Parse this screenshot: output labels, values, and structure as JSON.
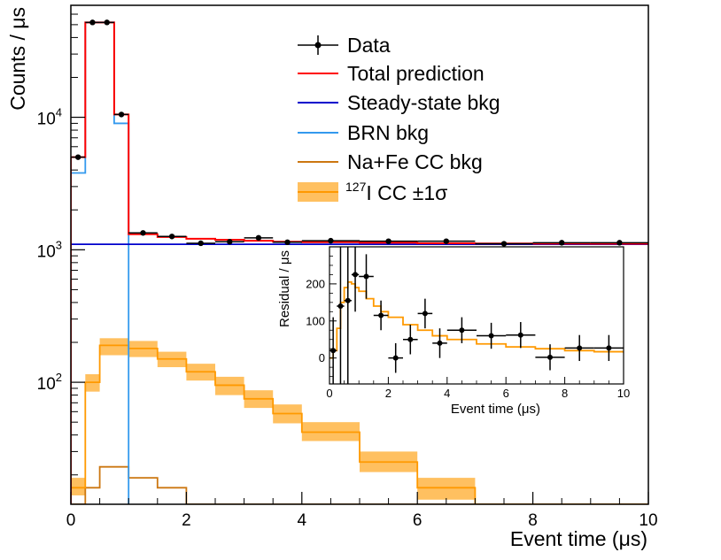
{
  "chart_data": {
    "type": "histogram",
    "main": {
      "xlabel": "Event time (μs)",
      "ylabel": "Counts / μs",
      "xlim": [
        0,
        10
      ],
      "ylim": [
        12,
        70000
      ],
      "yscale": "log",
      "x_ticks": [
        0,
        2,
        4,
        6,
        8,
        10
      ],
      "x_tick_labels": [
        "0",
        "2",
        "4",
        "6",
        "8",
        "10"
      ],
      "y_ticks": [
        {
          "value": 100,
          "base": "10",
          "exp": "2"
        },
        {
          "value": 1000,
          "base": "10",
          "exp": "3"
        },
        {
          "value": 10000,
          "base": "10",
          "exp": "4"
        }
      ],
      "data_points": [
        {
          "x": 0.125,
          "y": 5000,
          "xerr": 0.125
        },
        {
          "x": 0.375,
          "y": 52000,
          "xerr": 0.125
        },
        {
          "x": 0.625,
          "y": 52000,
          "xerr": 0.125
        },
        {
          "x": 0.875,
          "y": 10500,
          "xerr": 0.125
        },
        {
          "x": 1.25,
          "y": 1340,
          "xerr": 0.25
        },
        {
          "x": 1.75,
          "y": 1260,
          "xerr": 0.25
        },
        {
          "x": 2.25,
          "y": 1120,
          "xerr": 0.25
        },
        {
          "x": 2.75,
          "y": 1150,
          "xerr": 0.25
        },
        {
          "x": 3.25,
          "y": 1230,
          "xerr": 0.25
        },
        {
          "x": 3.75,
          "y": 1140,
          "xerr": 0.25
        },
        {
          "x": 4.5,
          "y": 1170,
          "xerr": 0.5
        },
        {
          "x": 5.5,
          "y": 1160,
          "xerr": 0.5
        },
        {
          "x": 6.5,
          "y": 1160,
          "xerr": 0.5
        },
        {
          "x": 7.5,
          "y": 1110,
          "xerr": 0.5
        },
        {
          "x": 8.5,
          "y": 1130,
          "xerr": 0.5
        },
        {
          "x": 9.5,
          "y": 1130,
          "xerr": 0.5
        }
      ],
      "series": [
        {
          "name": "Total prediction",
          "color": "#ff0000",
          "edges": [
            0,
            0.25,
            0.5,
            0.75,
            1,
            1.5,
            2,
            2.5,
            3,
            3.5,
            4,
            5,
            6,
            7,
            8,
            9,
            10
          ],
          "values": [
            5000,
            52000,
            52000,
            10500,
            1310,
            1250,
            1210,
            1190,
            1170,
            1150,
            1140,
            1130,
            1120,
            1115,
            1112,
            1110
          ]
        },
        {
          "name": "Steady-state bkg",
          "color": "#0000cc",
          "edges": [
            0,
            10
          ],
          "values": [
            1100
          ]
        },
        {
          "name": "BRN bkg",
          "color": "#3399ee",
          "edges": [
            0,
            0.25,
            0.5,
            0.75,
            1
          ],
          "values": [
            3800,
            52000,
            52000,
            9000
          ]
        },
        {
          "name": "Na+Fe CC bkg",
          "color": "#cc7711",
          "edges": [
            0,
            0.25,
            0.5,
            1,
            1.5,
            2,
            10
          ],
          "values": [
            12,
            16,
            23,
            19,
            16,
            12
          ]
        },
        {
          "name": "127I CC",
          "color": "#ff9900",
          "edges": [
            0,
            0.25,
            0.5,
            1,
            1.5,
            2,
            2.5,
            3,
            3.5,
            4,
            5,
            6,
            7,
            8,
            10
          ],
          "values": [
            16,
            100,
            190,
            180,
            150,
            120,
            95,
            75,
            58,
            42,
            25,
            16,
            12,
            12
          ],
          "band_low": [
            14,
            85,
            160,
            155,
            130,
            103,
            80,
            64,
            49,
            36,
            21,
            13,
            12,
            12
          ],
          "band_high": [
            19,
            115,
            215,
            205,
            170,
            138,
            110,
            87,
            68,
            50,
            30,
            19,
            12,
            12
          ]
        }
      ]
    },
    "inset": {
      "xlabel": "Event time (μs)",
      "ylabel": "Residual / μs",
      "xlim": [
        0,
        10
      ],
      "ylim": [
        -70,
        300
      ],
      "x_ticks": [
        0,
        2,
        4,
        6,
        8,
        10
      ],
      "x_tick_labels": [
        "0",
        "2",
        "4",
        "6",
        "8",
        "10"
      ],
      "y_ticks": [
        0,
        100,
        200
      ],
      "y_tick_labels": [
        "0",
        "100",
        "200"
      ],
      "data_points": [
        {
          "x": 0.125,
          "y": 20,
          "xerr": 0.125,
          "yerr": 90
        },
        {
          "x": 0.375,
          "y": 140,
          "xerr": 0.125,
          "yerr": 230
        },
        {
          "x": 0.625,
          "y": 155,
          "xerr": 0.125,
          "yerr": 230
        },
        {
          "x": 0.875,
          "y": 225,
          "xerr": 0.125,
          "yerr": 100
        },
        {
          "x": 1.25,
          "y": 220,
          "xerr": 0.25,
          "yerr": 60
        },
        {
          "x": 1.75,
          "y": 115,
          "xerr": 0.25,
          "yerr": 40
        },
        {
          "x": 2.25,
          "y": 0,
          "xerr": 0.25,
          "yerr": 40
        },
        {
          "x": 2.75,
          "y": 50,
          "xerr": 0.25,
          "yerr": 40
        },
        {
          "x": 3.25,
          "y": 120,
          "xerr": 0.25,
          "yerr": 40
        },
        {
          "x": 3.75,
          "y": 40,
          "xerr": 0.25,
          "yerr": 40
        },
        {
          "x": 4.5,
          "y": 75,
          "xerr": 0.5,
          "yerr": 35
        },
        {
          "x": 5.5,
          "y": 60,
          "xerr": 0.5,
          "yerr": 35
        },
        {
          "x": 6.5,
          "y": 62,
          "xerr": 0.5,
          "yerr": 35
        },
        {
          "x": 7.5,
          "y": 2,
          "xerr": 0.5,
          "yerr": 35
        },
        {
          "x": 8.5,
          "y": 27,
          "xerr": 0.5,
          "yerr": 35
        },
        {
          "x": 9.5,
          "y": 27,
          "xerr": 0.5,
          "yerr": 35
        }
      ],
      "prediction": {
        "name": "127I CC",
        "color": "#ff9900",
        "edges": [
          0,
          0.125,
          0.25,
          0.375,
          0.5,
          0.625,
          0.75,
          0.875,
          1,
          1.25,
          1.5,
          1.75,
          2,
          2.5,
          3,
          3.5,
          4,
          5,
          6,
          7,
          8,
          9,
          10
        ],
        "values": [
          0,
          20,
          80,
          150,
          190,
          205,
          200,
          190,
          180,
          160,
          140,
          125,
          110,
          90,
          75,
          60,
          50,
          38,
          30,
          25,
          20,
          17,
          14
        ]
      }
    },
    "legend": {
      "position": "top-right",
      "entries": [
        {
          "label": "Data",
          "style": "marker"
        },
        {
          "label": "Total prediction",
          "style": "line",
          "color": "#ff0000"
        },
        {
          "label": "Steady-state bkg",
          "style": "line",
          "color": "#0000cc"
        },
        {
          "label": "BRN bkg",
          "style": "line",
          "color": "#3399ee"
        },
        {
          "label": "Na+Fe CC bkg",
          "style": "line",
          "color": "#cc7711"
        },
        {
          "label_sup": "127",
          "label": "I CC ±1σ",
          "style": "band",
          "color": "#ff9900",
          "fill": "#ffc060"
        }
      ]
    }
  }
}
